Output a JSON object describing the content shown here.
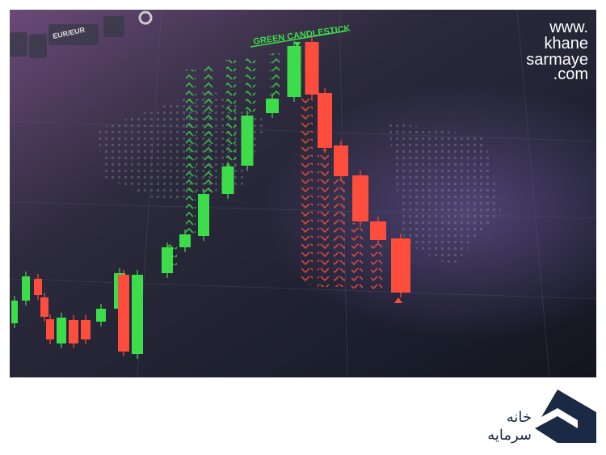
{
  "image": {
    "toolbar": {
      "pair": "EUR/EUR"
    },
    "caption": "GREEN CANDLESTICK",
    "watermark": [
      "www.",
      "khane",
      "sarmaye",
      ".com"
    ]
  },
  "logo": {
    "text": [
      "خانه",
      "سرمایه"
    ]
  }
}
